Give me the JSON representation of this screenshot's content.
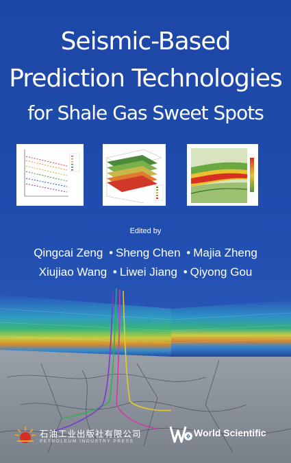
{
  "title": {
    "line1": "Seismic-Based",
    "line2": "Prediction Technologies",
    "line3": "for Shale Gas Sweet Spots"
  },
  "edited_by": "Edited by",
  "editors": {
    "line1": [
      "Qingcai Zeng",
      "Sheng Chen",
      "Majia Zheng"
    ],
    "line2": [
      "Xiujiao Wang",
      "Liwei Jiang",
      "Qiyong Gou"
    ],
    "separator": "•"
  },
  "publishers": {
    "petroleum_cn": "石油工业出版社有限公司",
    "petroleum_en": "PETROLEUM INDUSTRY PRESS",
    "world_scientific": "World Scientific"
  },
  "colors": {
    "background": "#1f4cae",
    "title_text": "#ffffff",
    "logo_red": "#d83020",
    "logo_orange": "#f2a531"
  }
}
